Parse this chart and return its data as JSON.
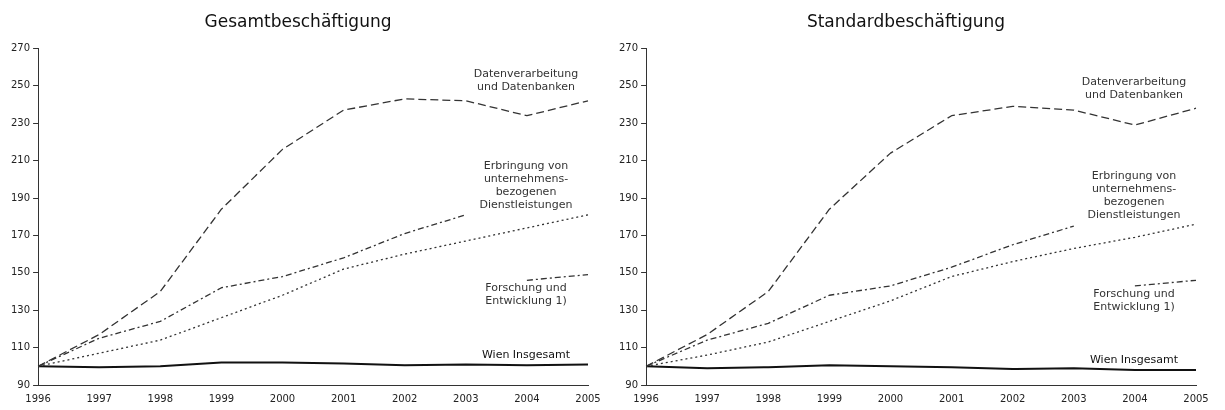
{
  "chart_data": [
    {
      "type": "line",
      "title": "Gesamtbeschäftigung",
      "categories": [
        "1996",
        "1997",
        "1998",
        "1999",
        "2000",
        "2001",
        "2002",
        "2003",
        "2004",
        "2005"
      ],
      "ylim": [
        90,
        270
      ],
      "yticks": [
        90,
        110,
        130,
        150,
        170,
        190,
        210,
        230,
        250,
        270
      ],
      "grid": false,
      "legend": false,
      "marker": "none",
      "series": [
        {
          "name": "Datenverarbeitung und Datenbanken",
          "color": "#333333",
          "line_style": "dashed",
          "values": [
            100,
            117,
            140,
            184,
            216,
            237,
            243,
            242,
            234,
            242
          ]
        },
        {
          "name": "Erbringung von unternehmens- bezogenen Dienstleistungen",
          "color": "#333333",
          "line_style": "dotted",
          "values": [
            100,
            107,
            114,
            126,
            138,
            152,
            160,
            167,
            174,
            181
          ]
        },
        {
          "color": "#333333",
          "line_style": "dashdot",
          "values": [
            100,
            115,
            124,
            142,
            148,
            158,
            171,
            181,
            null,
            null
          ]
        },
        {
          "name": "Forschung und Entwicklung 1)",
          "color": "#333333",
          "line_style": "dashdot",
          "values": [
            null,
            null,
            null,
            null,
            null,
            null,
            null,
            null,
            146,
            149
          ]
        },
        {
          "name": "Wien Insgesamt",
          "color": "#111111",
          "line_style": "solid",
          "values": [
            100,
            99.5,
            100,
            102,
            102,
            101.5,
            100.5,
            101,
            100.5,
            101
          ]
        }
      ]
    },
    {
      "type": "line",
      "title": "Standardbeschäftigung",
      "categories": [
        "1996",
        "1997",
        "1998",
        "1999",
        "2000",
        "2001",
        "2002",
        "2003",
        "2004",
        "2005"
      ],
      "ylim": [
        90,
        270
      ],
      "yticks": [
        90,
        110,
        130,
        150,
        170,
        190,
        210,
        230,
        250,
        270
      ],
      "grid": false,
      "legend": false,
      "marker": "none",
      "series": [
        {
          "name": "Datenverarbeitung und Datenbanken",
          "color": "#333333",
          "line_style": "dashed",
          "values": [
            100,
            117,
            140,
            184,
            214,
            234,
            239,
            237,
            229,
            238
          ]
        },
        {
          "name": "Erbringung von unternehmens- bezogenen Dienstleistungen",
          "color": "#333333",
          "line_style": "dotted",
          "values": [
            100,
            106,
            113,
            124,
            135,
            148,
            156,
            163,
            169,
            176
          ]
        },
        {
          "color": "#333333",
          "line_style": "dashdot",
          "values": [
            100,
            114,
            123,
            138,
            143,
            153,
            165,
            175,
            null,
            null
          ]
        },
        {
          "name": "Forschung und Entwicklung 1)",
          "color": "#333333",
          "line_style": "dashdot",
          "values": [
            null,
            null,
            null,
            null,
            null,
            null,
            null,
            null,
            143,
            146
          ]
        },
        {
          "name": "Wien Insgesamt",
          "color": "#111111",
          "line_style": "solid",
          "values": [
            100,
            99,
            99.5,
            100.5,
            100,
            99.5,
            98.5,
            99,
            98,
            98
          ]
        }
      ]
    }
  ]
}
